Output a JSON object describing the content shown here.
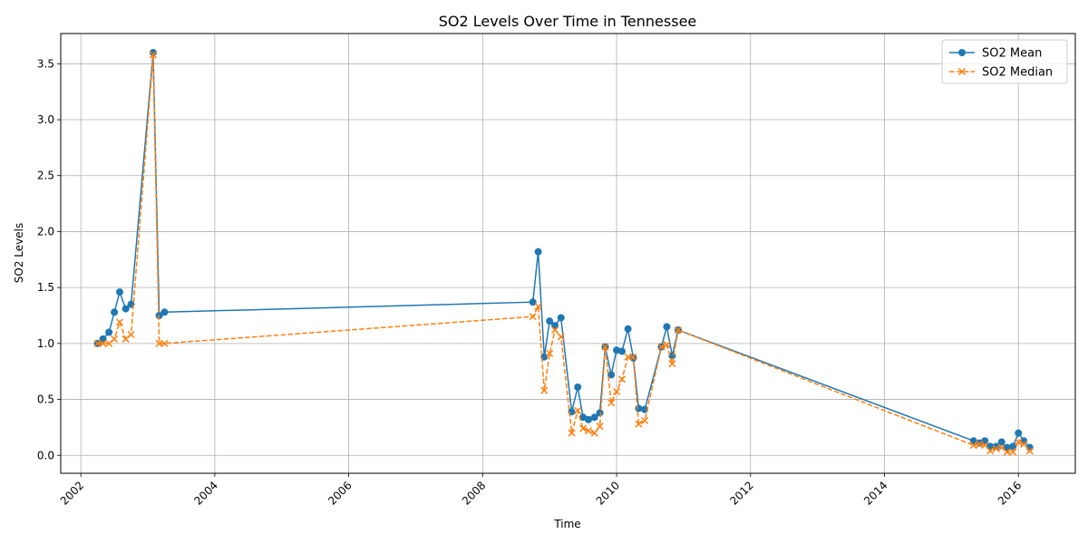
{
  "chart_data": {
    "type": "line",
    "title": "SO2 Levels Over Time in Tennessee",
    "xlabel": "Time",
    "ylabel": "SO2 Levels",
    "x_ticks": [
      "2002",
      "2004",
      "2006",
      "2008",
      "2010",
      "2012",
      "2014",
      "2016"
    ],
    "y_ticks": [
      "0.0",
      "0.5",
      "1.0",
      "1.5",
      "2.0",
      "2.5",
      "3.0",
      "3.5"
    ],
    "xlim": [
      2001.7,
      2016.85
    ],
    "ylim": [
      -0.16,
      3.77
    ],
    "grid": true,
    "legend_position": "top-right",
    "x": [
      2002.25,
      2002.33,
      2002.42,
      2002.5,
      2002.58,
      2002.67,
      2002.75,
      2003.08,
      2003.17,
      2003.25,
      2008.75,
      2008.83,
      2008.92,
      2009.0,
      2009.08,
      2009.17,
      2009.33,
      2009.42,
      2009.5,
      2009.58,
      2009.67,
      2009.75,
      2009.83,
      2009.92,
      2010.0,
      2010.08,
      2010.17,
      2010.25,
      2010.33,
      2010.42,
      2010.67,
      2010.75,
      2010.83,
      2010.92,
      2015.33,
      2015.42,
      2015.5,
      2015.58,
      2015.67,
      2015.75,
      2015.83,
      2015.92,
      2016.0,
      2016.08,
      2016.17
    ],
    "series": [
      {
        "name": "SO2 Mean",
        "color": "#1f77b4",
        "marker": "circle",
        "line_style": "solid",
        "values": [
          1.0,
          1.04,
          1.1,
          1.28,
          1.46,
          1.31,
          1.35,
          3.6,
          1.25,
          1.28,
          1.37,
          1.82,
          0.88,
          1.2,
          1.16,
          1.23,
          0.39,
          0.61,
          0.34,
          0.32,
          0.34,
          0.38,
          0.97,
          0.72,
          0.94,
          0.93,
          1.13,
          0.87,
          0.42,
          0.41,
          0.97,
          1.15,
          0.89,
          1.12,
          0.13,
          0.11,
          0.13,
          0.08,
          0.08,
          0.12,
          0.07,
          0.08,
          0.2,
          0.13,
          0.07
        ]
      },
      {
        "name": "SO2 Median",
        "color": "#ff7f0e",
        "marker": "x",
        "line_style": "dashed",
        "values": [
          1.0,
          1.0,
          1.0,
          1.04,
          1.19,
          1.04,
          1.08,
          3.58,
          1.0,
          1.0,
          1.24,
          1.33,
          0.58,
          0.91,
          1.12,
          1.06,
          0.2,
          0.4,
          0.24,
          0.22,
          0.2,
          0.26,
          0.97,
          0.47,
          0.57,
          0.68,
          0.88,
          0.88,
          0.28,
          0.31,
          0.97,
          0.99,
          0.82,
          1.12,
          0.09,
          0.1,
          0.09,
          0.04,
          0.06,
          0.07,
          0.03,
          0.03,
          0.12,
          0.1,
          0.04
        ]
      }
    ]
  }
}
